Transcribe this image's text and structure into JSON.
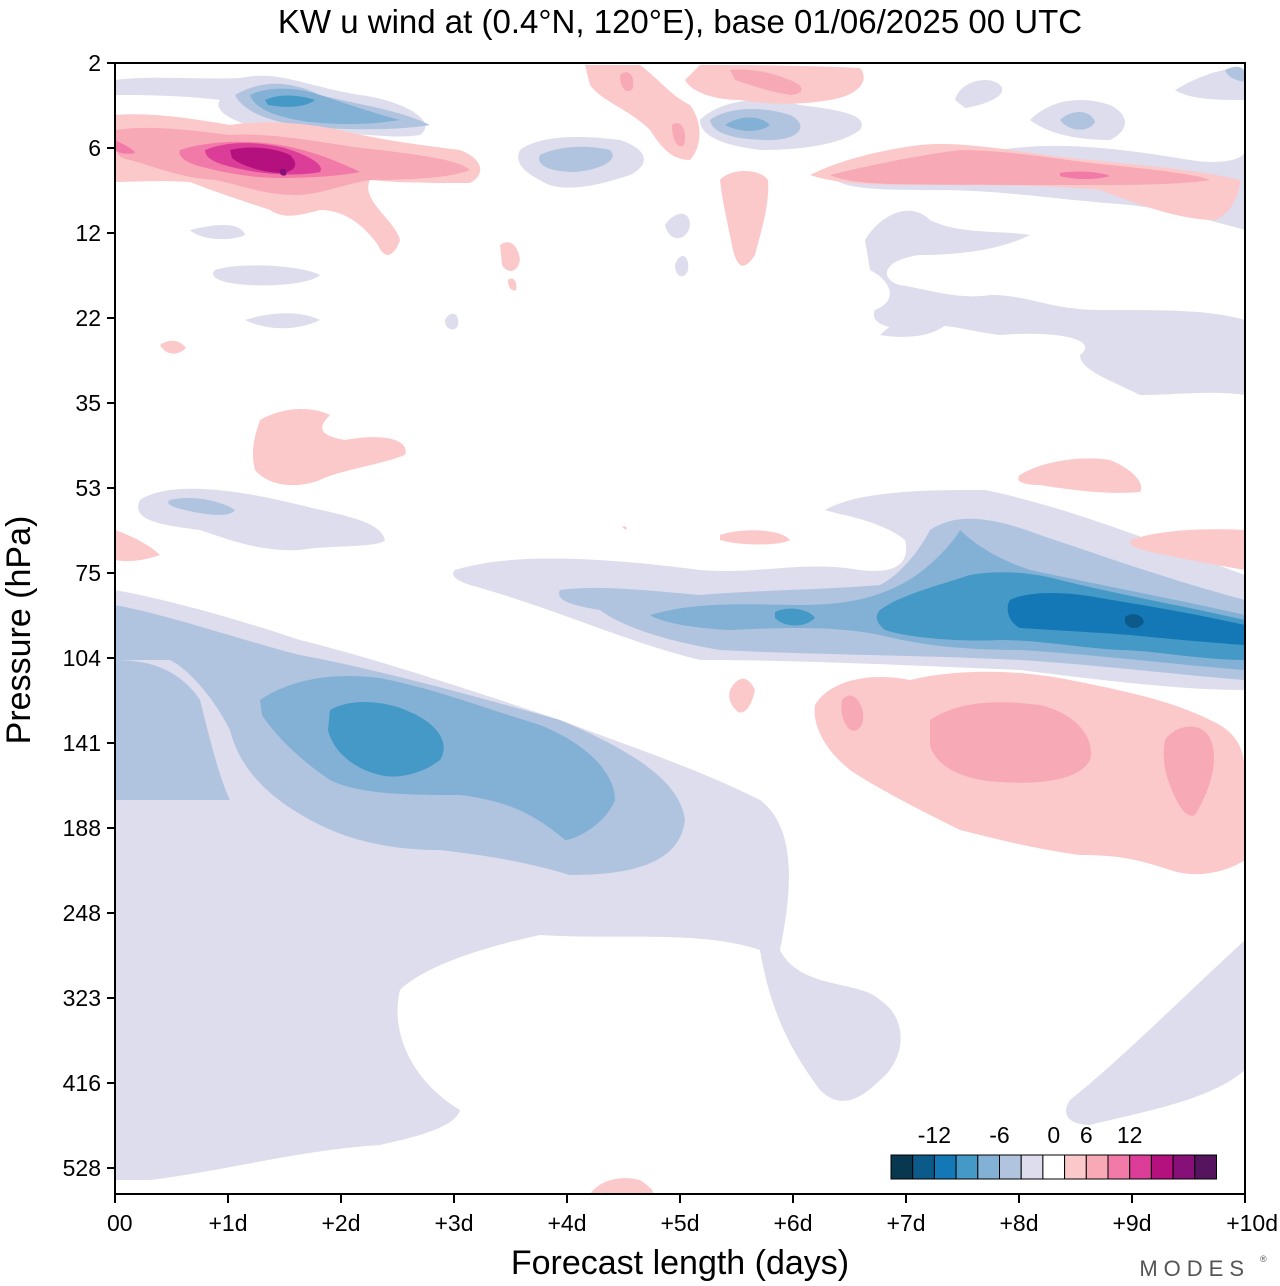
{
  "chart_data": {
    "type": "heatmap",
    "title": "KW u wind at (0.4°N, 120°E),  base 01/06/2025  00 UTC",
    "xlabel": "Forecast length (days)",
    "ylabel": "Pressure (hPa)",
    "x_ticks": [
      "00",
      "+1d",
      "+2d",
      "+3d",
      "+4d",
      "+5d",
      "+6d",
      "+7d",
      "+8d",
      "+9d",
      "+10d"
    ],
    "y_ticks": [
      "2",
      "6",
      "12",
      "22",
      "35",
      "53",
      "75",
      "104",
      "141",
      "188",
      "248",
      "323",
      "416",
      "528"
    ],
    "xlim_days": [
      0,
      10
    ],
    "y_axis": "pressure, plotted top-down from 2 to 528 hPa, tick levels evenly spaced",
    "colorbar": {
      "labels": [
        "-12",
        "-6",
        "0",
        "6",
        "12"
      ],
      "levels": [
        -18,
        -15,
        -12,
        -9,
        -6,
        -3,
        -1,
        1,
        3,
        6,
        9,
        12,
        15,
        18
      ],
      "colors": [
        "#08384f",
        "#0c5a8a",
        "#1378b5",
        "#4599c7",
        "#82b1d5",
        "#b0c4e0",
        "#dddded",
        "#ffffff",
        "#fcc9cb",
        "#f8a9b6",
        "#f27aa8",
        "#dc3d99",
        "#b5117e",
        "#870f78",
        "#56135e"
      ]
    },
    "features": [
      {
        "label": "negative band ~ 75–104 hPa, days 4–10",
        "min_value": -12
      },
      {
        "label": "negative core ~ 120–160 hPa, days 1–4",
        "min_value": -9
      },
      {
        "label": "positive core ~ 6–8 hPa, days 0.5–3",
        "max_value": 15
      },
      {
        "label": "positive region ~ 120–200 hPa, days 6.3–10",
        "max_value": 6
      }
    ]
  },
  "brand": "MODES"
}
